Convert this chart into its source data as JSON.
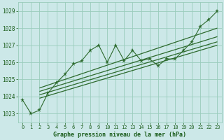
{
  "hours": [
    0,
    1,
    2,
    3,
    4,
    5,
    6,
    7,
    8,
    9,
    10,
    11,
    12,
    13,
    14,
    15,
    16,
    17,
    18,
    19,
    20,
    21,
    22,
    23
  ],
  "pressure": [
    1023.8,
    1023.0,
    1023.2,
    1024.2,
    1024.8,
    1025.3,
    1025.9,
    1026.1,
    1026.7,
    1027.0,
    1026.0,
    1027.0,
    1026.1,
    1026.7,
    1026.1,
    1026.2,
    1025.8,
    1026.2,
    1026.2,
    1026.7,
    1027.2,
    1028.1,
    1028.5,
    1029.0
  ],
  "line1": [
    [
      2,
      1023.9
    ],
    [
      23,
      1027.0
    ]
  ],
  "line2": [
    [
      2,
      1024.1
    ],
    [
      23,
      1027.2
    ]
  ],
  "line3": [
    [
      2,
      1024.3
    ],
    [
      23,
      1027.5
    ]
  ],
  "line4": [
    [
      2,
      1024.5
    ],
    [
      23,
      1028.0
    ]
  ],
  "line_color": "#2d6a2d",
  "bg_color": "#cce8e8",
  "grid_color": "#99ccbb",
  "text_color": "#1a5c1a",
  "xlabel": "Graphe pression niveau de la mer (hPa)",
  "ylim": [
    1022.5,
    1029.5
  ],
  "xlim": [
    -0.5,
    23.5
  ],
  "yticks": [
    1023,
    1024,
    1025,
    1026,
    1027,
    1028,
    1029
  ],
  "xtick_labels": [
    "0",
    "1",
    "2",
    "3",
    "4",
    "5",
    "6",
    "7",
    "8",
    "9",
    "10",
    "11",
    "12",
    "13",
    "14",
    "15",
    "16",
    "17",
    "18",
    "19",
    "20",
    "21",
    "22",
    "23"
  ]
}
